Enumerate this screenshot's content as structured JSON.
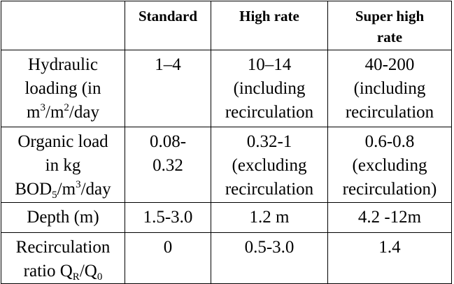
{
  "table": {
    "header": {
      "corner": "",
      "standard": "Standard",
      "high_rate": "High rate",
      "super_high_rate": [
        "Super high",
        "rate"
      ]
    },
    "rows": [
      {
        "label": [
          "Hydraulic",
          "loading (in",
          "m",
          "3",
          "/m",
          "2",
          "/day"
        ],
        "standard": [
          "1–4"
        ],
        "high_rate": [
          "10–14",
          "(including",
          "recirculation"
        ],
        "super_high_rate": [
          "40-200",
          "(including",
          "recirculation"
        ]
      },
      {
        "label": [
          "Organic load",
          "in kg",
          "BOD",
          "5",
          "/m",
          "3",
          "/day"
        ],
        "standard": [
          "0.08-",
          "0.32"
        ],
        "high_rate": [
          "0.32-1",
          "(excluding",
          "recirculation"
        ],
        "super_high_rate": [
          "0.6-0.8",
          "(excluding",
          "recirculation)"
        ]
      },
      {
        "label": [
          "Depth (m)"
        ],
        "standard": [
          "1.5-3.0"
        ],
        "high_rate": [
          "1.2 m"
        ],
        "super_high_rate": [
          "4.2 -12m"
        ]
      },
      {
        "label": [
          "Recirculation",
          "ratio Q",
          "R",
          "/Q",
          "0"
        ],
        "standard": [
          "0"
        ],
        "high_rate": [
          "0.5-3.0"
        ],
        "super_high_rate": [
          "1.4"
        ]
      }
    ]
  }
}
